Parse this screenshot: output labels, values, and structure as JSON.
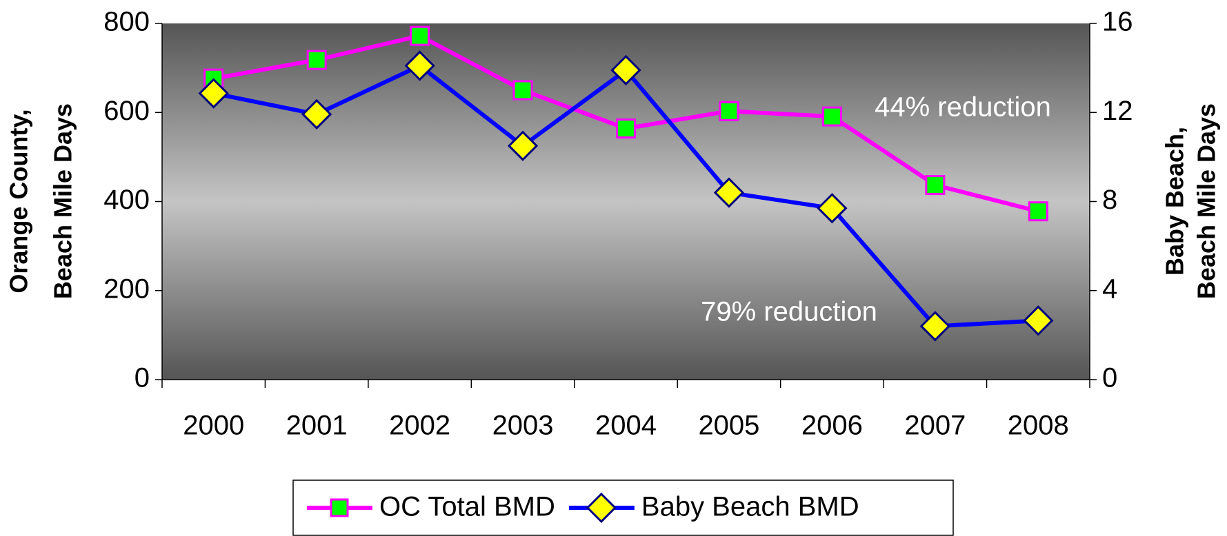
{
  "chart_data": {
    "type": "line",
    "categories": [
      "2000",
      "2001",
      "2002",
      "2003",
      "2004",
      "2005",
      "2006",
      "2007",
      "2008"
    ],
    "series": [
      {
        "name": "OC Total BMD",
        "color": "#ff00ff",
        "marker_color": "#00ff00",
        "values": [
          676,
          718,
          772,
          650,
          564,
          603,
          591,
          437,
          378
        ]
      },
      {
        "name": "Baby Beach BMD",
        "color": "#0000ff",
        "marker_color": "#ffff00",
        "axis": "y2",
        "values": [
          12.86,
          11.92,
          14.1,
          10.5,
          13.9,
          8.4,
          7.7,
          2.4,
          2.65
        ]
      }
    ],
    "ylabel": [
      "Orange County,",
      "Beach Mile Days"
    ],
    "y2label": [
      "Baby Beach,",
      "Beach Mile Days"
    ],
    "ylim": [
      0,
      800
    ],
    "yticks": [
      0,
      200,
      400,
      600,
      800
    ],
    "y2lim": [
      0,
      16
    ],
    "y2ticks": [
      0,
      4,
      8,
      12,
      16
    ],
    "annotations": [
      "44% reduction",
      "79% reduction"
    ],
    "legend": "bottom"
  }
}
